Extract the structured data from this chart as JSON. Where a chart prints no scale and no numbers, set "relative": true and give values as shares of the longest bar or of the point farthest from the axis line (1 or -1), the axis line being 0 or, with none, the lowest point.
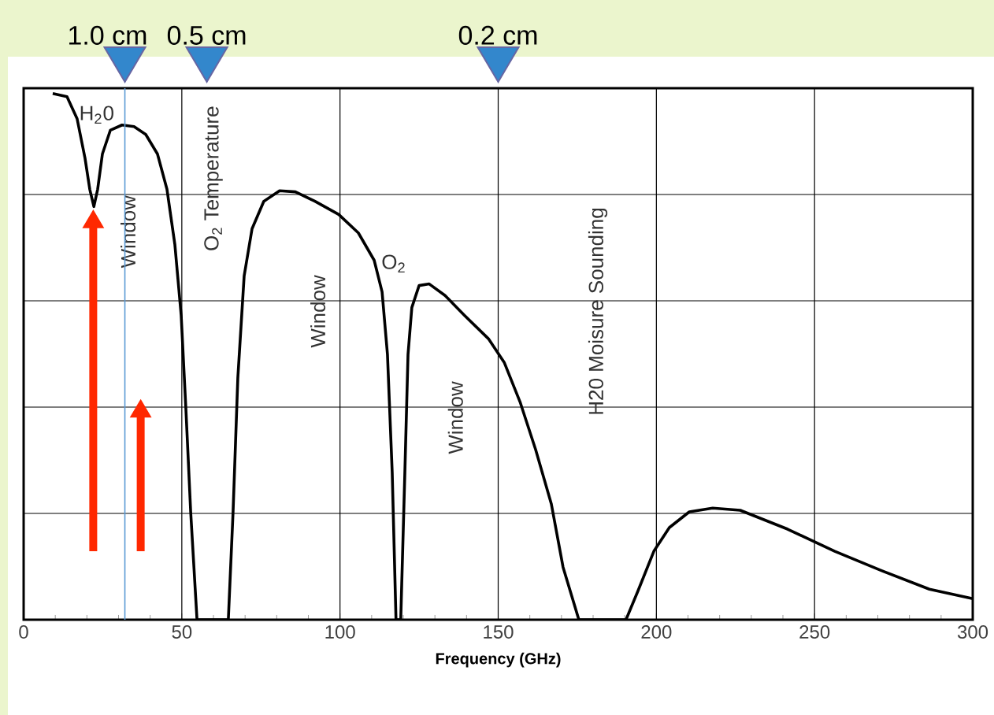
{
  "chart_data": {
    "type": "line",
    "relative": true,
    "xlabel": "Frequency (GHz)",
    "xlim": [
      0,
      300
    ],
    "xticks": [
      0,
      50,
      100,
      150,
      200,
      250,
      300
    ],
    "grid": true,
    "tick_labels": "x",
    "marker": "none",
    "line_style": "solid",
    "series": [
      {
        "color": "#000000",
        "x": [
          9.2,
          13.7,
          16.9,
          19.4,
          20.9,
          22.2,
          23.4,
          24.9,
          27.4,
          31.1,
          34.9,
          38.6,
          42.3,
          45.3,
          47.8,
          49.8,
          51.3,
          52.8,
          54.8,
          64.7,
          66.2,
          67.7,
          69.7,
          72.2,
          75.9,
          80.9,
          85.9,
          92.1,
          99.6,
          105.8,
          110.8,
          113.3,
          115.0,
          116.5,
          117.7,
          119.2,
          120.5,
          121.5,
          122.7,
          125.0,
          128.2,
          133.2,
          139.4,
          146.9,
          151.9,
          156.9,
          161.8,
          166.8,
          170.5,
          175.5,
          190.4,
          194.2,
          199.2,
          204.1,
          210.4,
          217.8,
          226.5,
          241.5,
          256.4,
          271.3,
          286.3,
          300
        ],
        "values": [
          1.0,
          0.994,
          0.952,
          0.877,
          0.818,
          0.785,
          0.818,
          0.885,
          0.93,
          0.94,
          0.937,
          0.922,
          0.885,
          0.818,
          0.713,
          0.578,
          0.399,
          0.205,
          0,
          0,
          0.205,
          0.459,
          0.653,
          0.743,
          0.795,
          0.815,
          0.813,
          0.795,
          0.77,
          0.735,
          0.683,
          0.623,
          0.504,
          0.28,
          0,
          0,
          0.28,
          0.504,
          0.593,
          0.635,
          0.638,
          0.616,
          0.578,
          0.534,
          0.489,
          0.414,
          0.324,
          0.22,
          0.1,
          0,
          0,
          0.055,
          0.13,
          0.175,
          0.205,
          0.212,
          0.208,
          0.172,
          0.13,
          0.093,
          0.058,
          0.04
        ]
      }
    ],
    "ref_lines": [
      {
        "axis": "x",
        "value": 32,
        "label": "1.0 cm",
        "color": "#5b9bd5"
      }
    ],
    "annotations": [
      "0.5 cm",
      "0.2 cm",
      "H$_{2}$0",
      "Window",
      "O$_{2}$ Temperature",
      "Window",
      "O$_{2}$",
      "Window",
      "H20 Moisure Sounding"
    ]
  }
}
